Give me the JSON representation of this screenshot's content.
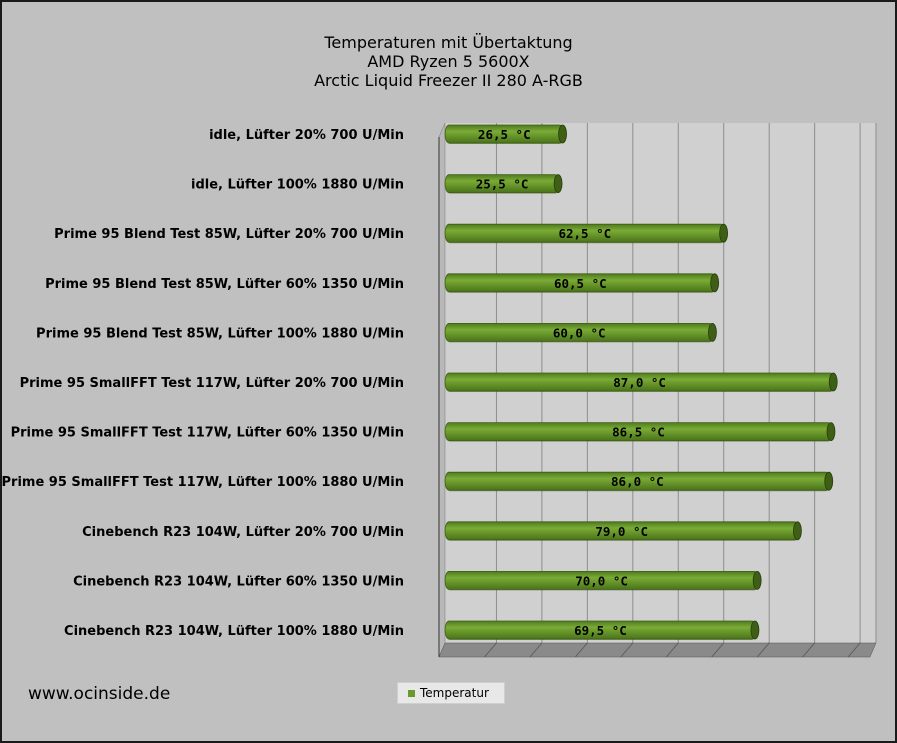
{
  "chart_data": {
    "type": "bar",
    "orientation": "horizontal",
    "title_lines": [
      "Temperaturen mit Übertaktung",
      "AMD Ryzen 5 5600X",
      "Arctic Liquid Freezer II 280 A-RGB"
    ],
    "categories": [
      "idle, Lüfter 20% 700 U/Min",
      "idle, Lüfter 100% 1880 U/Min",
      "Prime 95 Blend Test 85W, Lüfter 20% 700 U/Min",
      "Prime 95 Blend Test 85W, Lüfter 60% 1350 U/Min",
      "Prime 95 Blend Test 85W, Lüfter 100% 1880 U/Min",
      "Prime 95 SmallFFT Test 117W, Lüfter 20% 700 U/Min",
      "Prime 95 SmallFFT Test 117W, Lüfter 60% 1350 U/Min",
      "Prime 95 SmallFFT Test 117W, Lüfter 100% 1880 U/Min",
      "Cinebench R23 104W, Lüfter 20% 700 U/Min",
      "Cinebench R23 104W, Lüfter 60% 1350 U/Min",
      "Cinebench R23 104W, Lüfter 100% 1880 U/Min"
    ],
    "series": [
      {
        "name": "Temperatur",
        "values": [
          26.5,
          25.5,
          62.5,
          60.5,
          60.0,
          87.0,
          86.5,
          86.0,
          79.0,
          70.0,
          69.5
        ],
        "value_labels": [
          "26,5 °C",
          "25,5 °C",
          "62,5 °C",
          "60,5 °C",
          "60,0 °C",
          "87,0 °C",
          "86,5 °C",
          "86,0 °C",
          "79,0 °C",
          "70,0 °C",
          "69,5 °C"
        ]
      }
    ],
    "xlim": [
      0,
      95
    ],
    "axis_tick_labels_shown": false,
    "grid": true,
    "legend": "bottom-center",
    "colors": {
      "bar": "#6a9a2c",
      "bar_dark": "#3f5f16",
      "plot_background": "#d0d0d0",
      "floor": "#8a8a8a",
      "frame_background": "#c0c0c0"
    }
  },
  "footer": {
    "website": "www.ocinside.de"
  },
  "legend": {
    "label": "Temperatur"
  }
}
